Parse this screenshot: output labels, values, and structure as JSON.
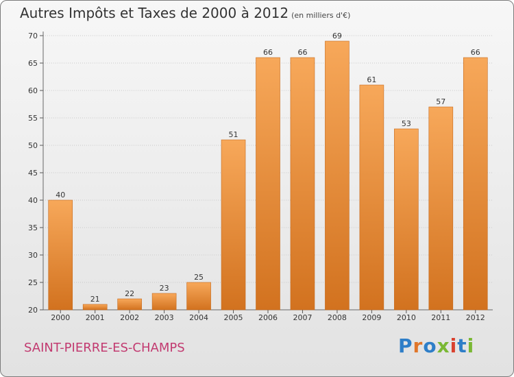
{
  "header": {
    "title": "Autres Impôts et Taxes de 2000 à 2012",
    "unit": "(en milliers d'€)"
  },
  "footer": {
    "commune": "SAINT-PIERRE-ES-CHAMPS",
    "logo_text": "Proxiti"
  },
  "colors": {
    "bar_top": "#f7a85a",
    "bar_bottom": "#d2721f",
    "commune": "#c23a70",
    "logo_letters": [
      "#2e7ec8",
      "#e0762a",
      "#2e7ec8",
      "#7ab834",
      "#d9412e",
      "#2e7ec8",
      "#7ab834"
    ]
  },
  "chart_data": {
    "type": "bar",
    "title": "Autres Impôts et Taxes de 2000 à 2012",
    "xlabel": "",
    "ylabel": "",
    "categories": [
      "2000",
      "2001",
      "2002",
      "2003",
      "2004",
      "2005",
      "2006",
      "2007",
      "2008",
      "2009",
      "2010",
      "2011",
      "2012"
    ],
    "values": [
      40,
      21,
      22,
      23,
      25,
      51,
      66,
      66,
      69,
      61,
      53,
      57,
      66
    ],
    "ylim": [
      20,
      70
    ],
    "yticks": [
      20,
      25,
      30,
      35,
      40,
      45,
      50,
      55,
      60,
      65,
      70
    ],
    "grid": true,
    "data_labels": true
  }
}
